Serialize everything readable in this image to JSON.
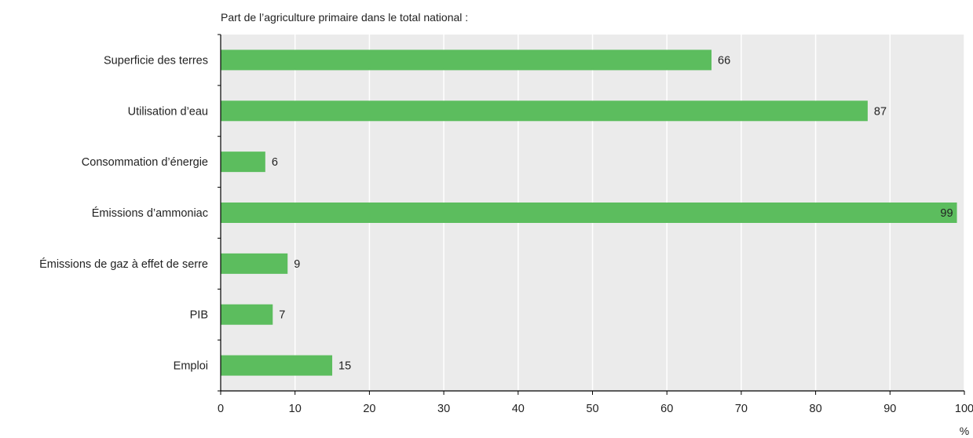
{
  "chart_data": {
    "type": "bar",
    "orientation": "horizontal",
    "title": "Part de l’agriculture primaire dans le total national :",
    "categories": [
      "Superficie des terres",
      "Utilisation d’eau",
      "Consommation d’énergie",
      "Émissions d’ammoniac",
      "Émissions de gaz à effet de serre",
      "PIB",
      "Emploi"
    ],
    "values": [
      66,
      87,
      6,
      99,
      9,
      7,
      15
    ],
    "xlim": [
      0,
      100
    ],
    "xticks": [
      0,
      10,
      20,
      30,
      40,
      50,
      60,
      70,
      80,
      90,
      100
    ],
    "xlabel": "%",
    "ylabel": "",
    "grid": true,
    "colors": {
      "bar": "#5cbd5e",
      "plot_background": "#ebebeb",
      "gridline": "#ffffff",
      "axis": "#000000",
      "text": "#222222"
    }
  }
}
